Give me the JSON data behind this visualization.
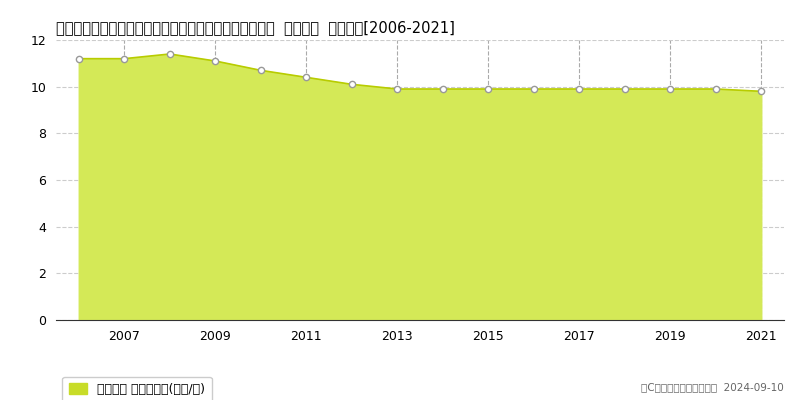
{
  "title": "埼玉県さいたま市岩槻区大字黒谷字久保１５０５番２外  地価公示  地価推移[2006-2021]",
  "years": [
    2006,
    2007,
    2008,
    2009,
    2010,
    2011,
    2012,
    2013,
    2014,
    2015,
    2016,
    2017,
    2018,
    2019,
    2020,
    2021
  ],
  "values": [
    11.2,
    11.2,
    11.4,
    11.1,
    10.7,
    10.4,
    10.1,
    9.9,
    9.9,
    9.9,
    9.9,
    9.9,
    9.9,
    9.9,
    9.9,
    9.8
  ],
  "ylim": [
    0,
    12
  ],
  "yticks": [
    0,
    2,
    4,
    6,
    8,
    10,
    12
  ],
  "fill_color": "#d4e957",
  "fill_alpha": 1.0,
  "line_color": "#b8cc00",
  "marker_facecolor": "#ffffff",
  "marker_edgecolor": "#999999",
  "bg_color": "#ffffff",
  "plot_bg_color": "#ffffff",
  "grid_color": "#cccccc",
  "vgrid_color": "#aaaaaa",
  "legend_label": "地価公示 平均坪単価(万円/坪)",
  "legend_color": "#c8dc28",
  "copyright_text": "（C）土地価格ドットコム  2024-09-10",
  "title_fontsize": 10.5,
  "axis_fontsize": 9,
  "legend_fontsize": 9,
  "xticks": [
    2007,
    2009,
    2011,
    2013,
    2015,
    2017,
    2019,
    2021
  ]
}
